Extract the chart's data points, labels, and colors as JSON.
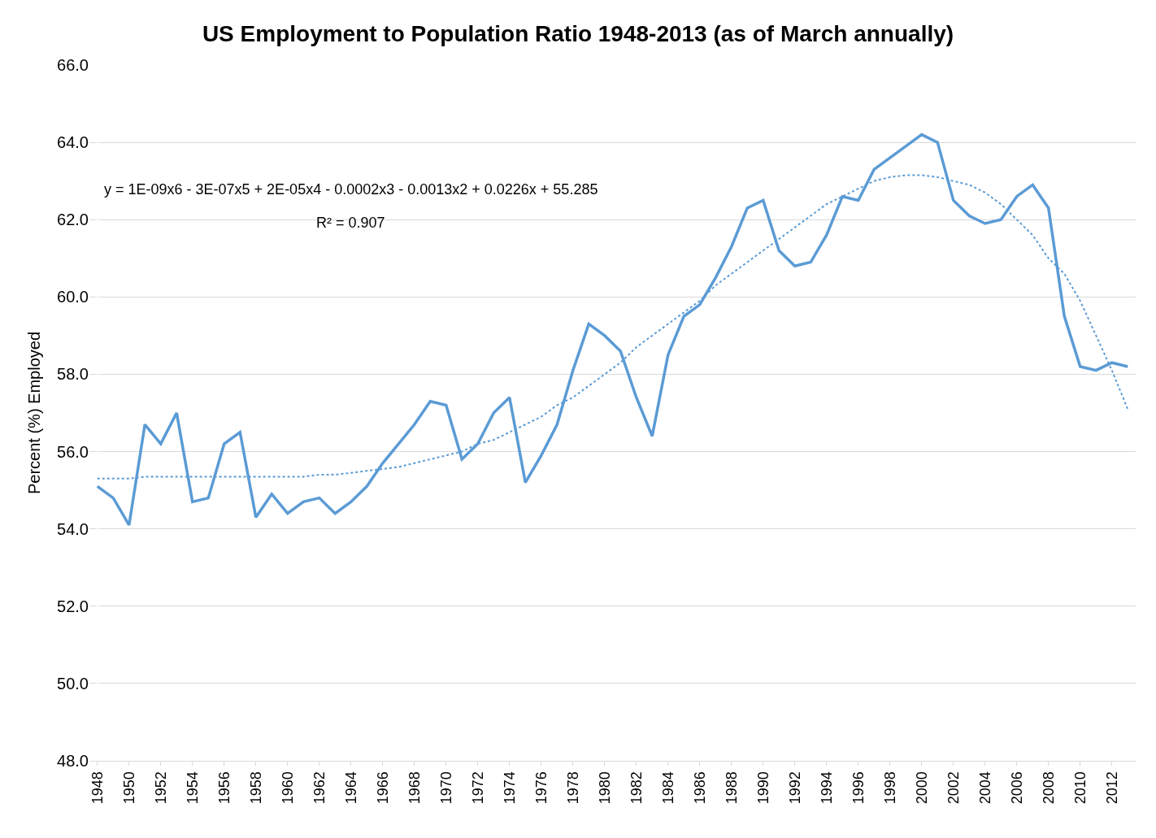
{
  "chart_data": {
    "type": "line",
    "title": "US Employment to Population Ratio 1948-2013 (as of March annually)",
    "ylabel": "Percent (%) Employed",
    "categories": [
      "1948",
      null,
      "1950",
      null,
      "1952",
      null,
      "1954",
      null,
      "1956",
      null,
      "1958",
      null,
      "1960",
      null,
      "1962",
      null,
      "1964",
      null,
      "1966",
      null,
      "1968",
      null,
      "1970",
      null,
      "1972",
      null,
      "1974",
      null,
      "1976",
      null,
      "1978",
      null,
      "1980",
      null,
      "1982",
      null,
      "1984",
      null,
      "1986",
      null,
      "1988",
      null,
      "1990",
      null,
      "1992",
      null,
      "1994",
      null,
      "1996",
      null,
      "1998",
      null,
      "2000",
      null,
      "2002",
      null,
      "2004",
      null,
      "2006",
      null,
      "2008",
      null,
      "2010",
      null,
      "2012",
      null
    ],
    "series": [
      {
        "color": "#5b9bd5",
        "line_style": "solid",
        "values": [
          55.1,
          54.8,
          54.1,
          56.7,
          56.2,
          57.0,
          54.7,
          54.8,
          56.2,
          56.5,
          54.3,
          54.9,
          54.4,
          54.7,
          54.8,
          54.4,
          54.7,
          55.1,
          55.7,
          56.2,
          56.7,
          57.3,
          57.2,
          55.8,
          56.2,
          57.0,
          57.4,
          55.2,
          55.9,
          56.7,
          58.1,
          59.3,
          59.0,
          58.6,
          57.4,
          56.4,
          58.5,
          59.5,
          59.8,
          60.5,
          61.3,
          62.3,
          62.5,
          61.2,
          60.8,
          60.9,
          61.6,
          62.6,
          62.5,
          63.3,
          63.6,
          63.9,
          64.2,
          64.0,
          62.5,
          62.1,
          61.9,
          62.0,
          62.6,
          62.9,
          62.3,
          59.5,
          58.2,
          58.1,
          58.3,
          58.2
        ]
      },
      {
        "color": "#5b9bd5",
        "line_style": "dotted",
        "values": [
          55.3,
          55.3,
          55.3,
          55.35,
          55.35,
          55.35,
          55.35,
          55.35,
          55.35,
          55.35,
          55.35,
          55.35,
          55.35,
          55.35,
          55.4,
          55.4,
          55.45,
          55.5,
          55.55,
          55.6,
          55.7,
          55.8,
          55.9,
          56.0,
          56.2,
          56.3,
          56.5,
          56.7,
          56.9,
          57.2,
          57.4,
          57.7,
          58.0,
          58.3,
          58.7,
          59.0,
          59.3,
          59.6,
          59.9,
          60.3,
          60.6,
          60.9,
          61.2,
          61.5,
          61.8,
          62.1,
          62.4,
          62.6,
          62.8,
          63.0,
          63.1,
          63.15,
          63.15,
          63.1,
          63.0,
          62.9,
          62.7,
          62.4,
          62.0,
          61.6,
          61.0,
          60.6,
          59.9,
          59.0,
          58.1,
          57.1
        ]
      }
    ],
    "ylim": [
      48,
      66
    ],
    "yticks": [
      {
        "value": 48,
        "label": "48.0"
      },
      {
        "value": 50,
        "label": "50.0"
      },
      {
        "value": 52,
        "label": "52.0"
      },
      {
        "value": 54,
        "label": "54.0"
      },
      {
        "value": 56,
        "label": "56.0"
      },
      {
        "value": 58,
        "label": "58.0"
      },
      {
        "value": 60,
        "label": "60.0"
      },
      {
        "value": 62,
        "label": "62.0"
      },
      {
        "value": 64,
        "label": "64.0"
      },
      {
        "value": 66,
        "label": "66.0"
      }
    ],
    "grid": "y",
    "marker": "none",
    "annotations": [
      "y = 1E-09x6 - 3E-07x5 + 2E-05x4 - 0.0002x3 - 0.0013x2 + 0.0226x + 55.285",
      "R² = 0.907"
    ]
  }
}
